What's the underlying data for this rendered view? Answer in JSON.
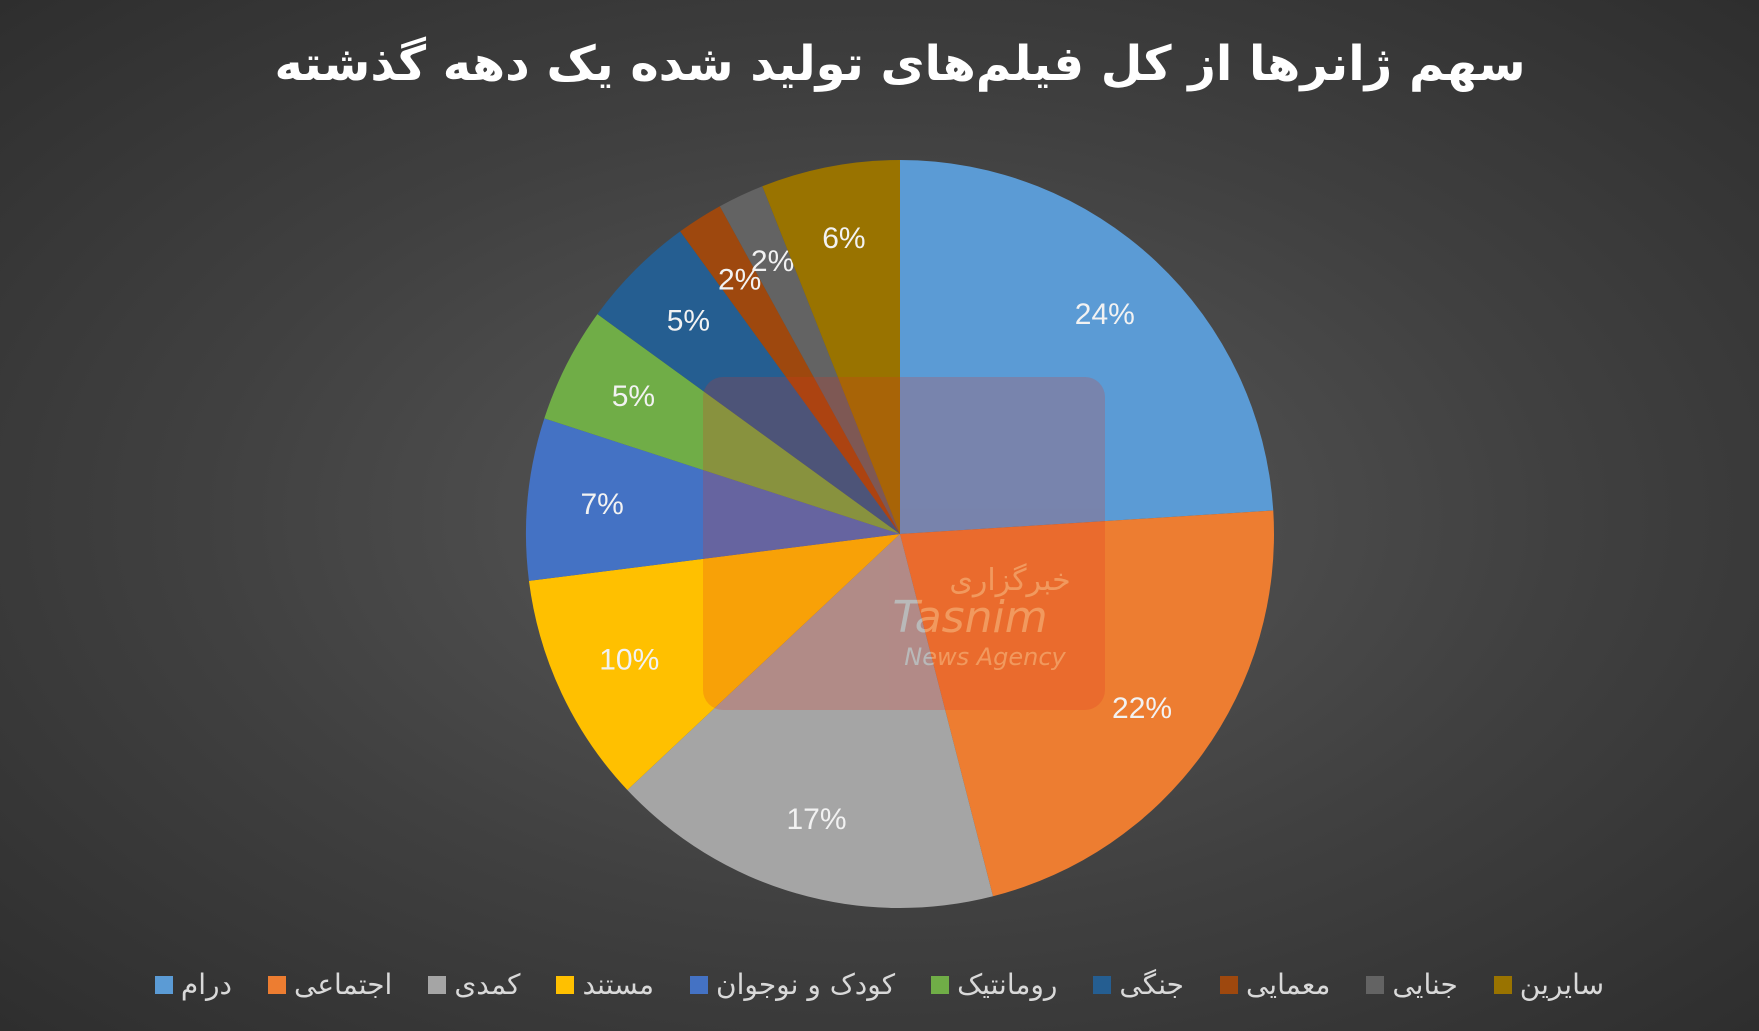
{
  "chart_data": {
    "type": "pie",
    "title": "سهم ژانرها از کل فیلم‌های تولید شده یک دهه گذشته",
    "categories": [
      "درام",
      "اجتماعی",
      "کمدی",
      "مستند",
      "کودک و نوجوان",
      "رومانتیک",
      "جنگی",
      "معمایی",
      "جنایی",
      "سایرین"
    ],
    "values": [
      24,
      22,
      17,
      10,
      7,
      5,
      5,
      2,
      2,
      6
    ],
    "value_labels": [
      "24%",
      "22%",
      "17%",
      "10%",
      "7%",
      "5%",
      "5%",
      "2%",
      "2%",
      "6%"
    ],
    "colors": [
      "#5b9bd5",
      "#ed7d31",
      "#a5a5a5",
      "#ffc000",
      "#4472c4",
      "#70ad47",
      "#255e91",
      "#9e480e",
      "#636363",
      "#997300"
    ],
    "legend": "bottom"
  },
  "watermark": [
    "خبرگزاری",
    "Tasnim",
    "News Agency"
  ]
}
